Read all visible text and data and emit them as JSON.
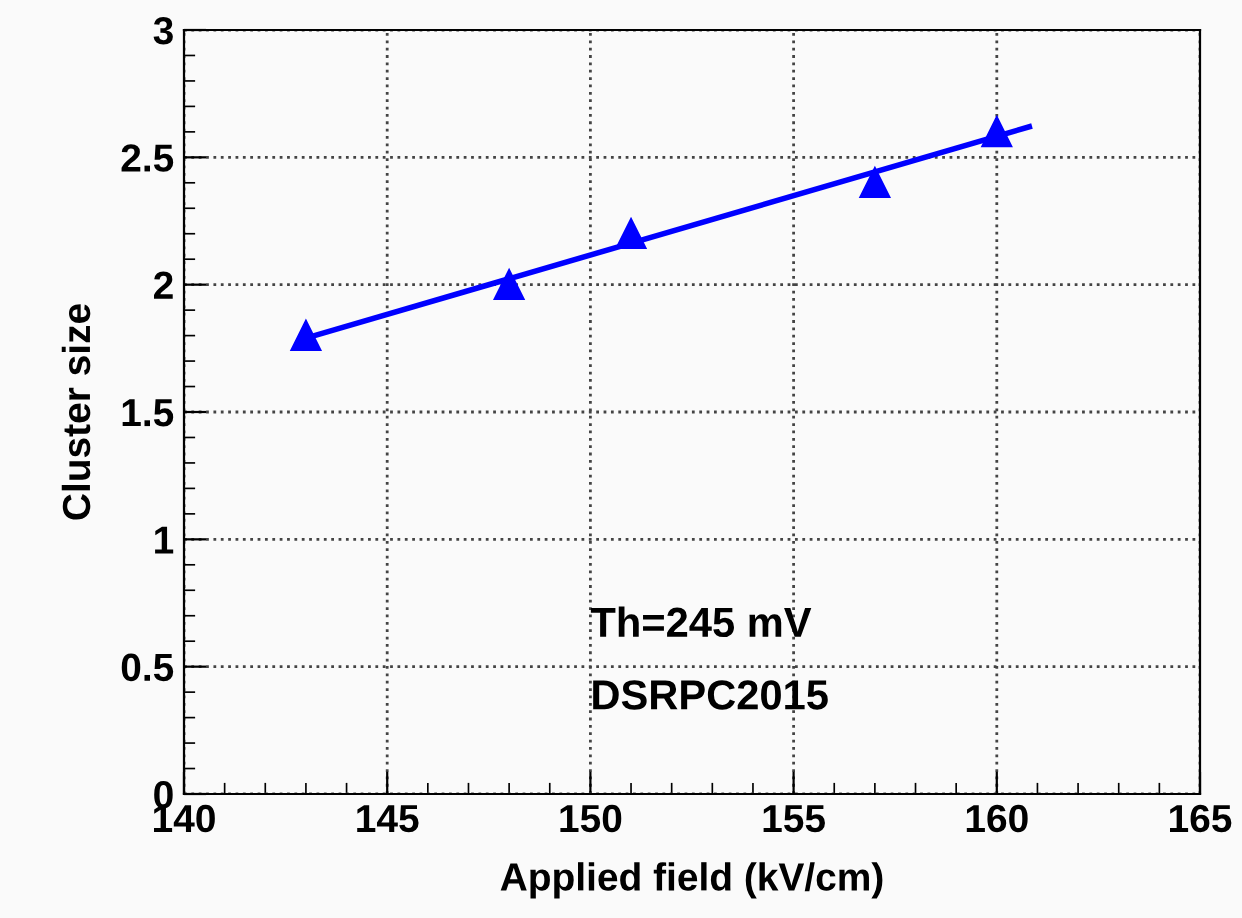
{
  "chart_data": {
    "type": "scatter",
    "xlabel": "Applied field (kV/cm)",
    "ylabel": "Cluster size",
    "series": [
      {
        "color": "#0000ff",
        "marker": "triangle",
        "x": [
          143,
          148,
          151,
          157,
          160
        ],
        "values": [
          1.8,
          2.0,
          2.2,
          2.4,
          2.6
        ]
      },
      {
        "type": "line",
        "color": "#0000ff",
        "marker": "none",
        "x": [
          143,
          160.8
        ],
        "values": [
          1.79,
          2.62
        ]
      }
    ],
    "xlim": [
      140,
      165
    ],
    "xticks": [
      140,
      145,
      150,
      155,
      160,
      165
    ],
    "ylim": [
      0,
      3
    ],
    "yticks": [
      0,
      0.5,
      1,
      1.5,
      2,
      2.5,
      3
    ],
    "grid": true,
    "annotations": [
      "Th=245 mV",
      "DSRPC2015"
    ]
  }
}
